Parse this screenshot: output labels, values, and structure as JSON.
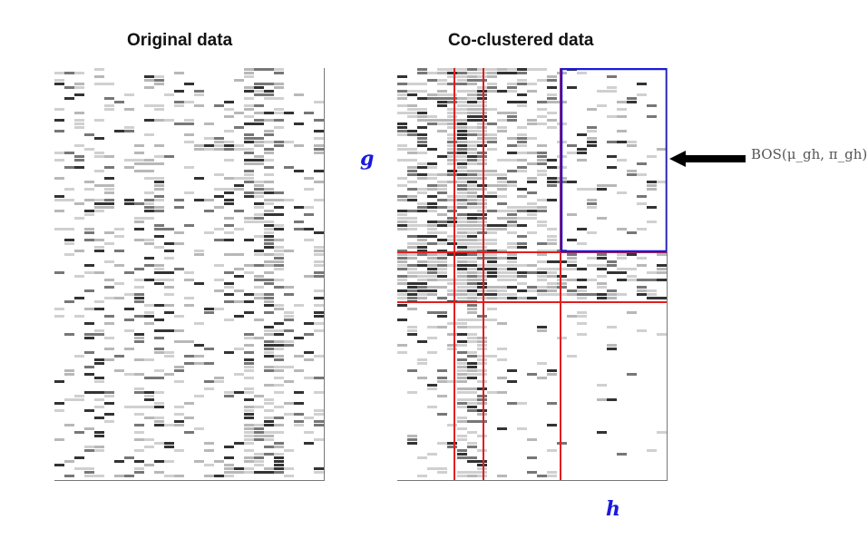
{
  "panels": {
    "left_title": "Original data",
    "right_title": "Co-clustered data"
  },
  "labels": {
    "g": "g",
    "h": "h",
    "formula": "BOS(μ_gh, π_gh)"
  },
  "colors": {
    "cluster_lines": "#e02020",
    "highlight_box": "#1a1adc",
    "cells": [
      "#d0d0d0",
      "#b8b8b8",
      "#777777",
      "#333333"
    ]
  }
}
